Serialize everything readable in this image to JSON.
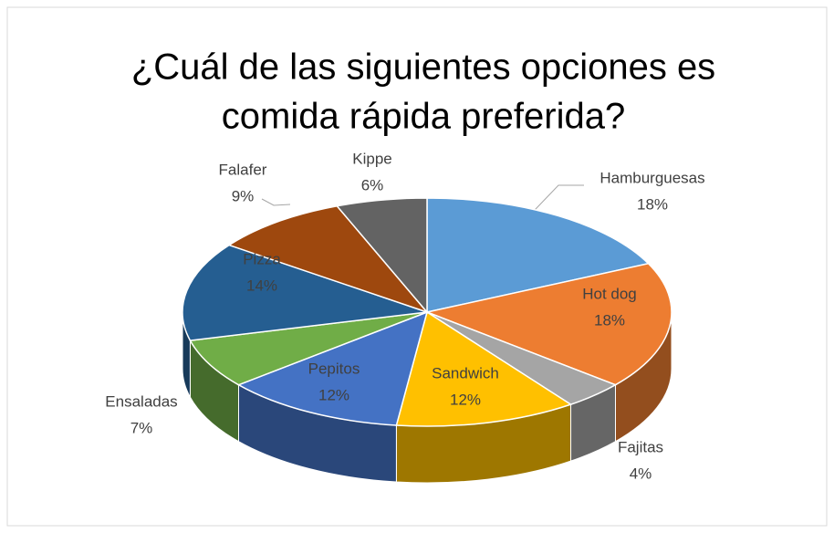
{
  "chart_data": {
    "type": "pie",
    "title": [
      "¿Cuál de las siguientes opciones es",
      "comida rápida preferida?"
    ],
    "categories": [
      "Hamburguesas",
      "Hot dog",
      "Fajitas",
      "Sandwich",
      "Pepitos",
      "Ensaladas",
      "Pizza",
      "Falafer",
      "Kippe"
    ],
    "values": [
      18,
      18,
      4,
      12,
      12,
      7,
      14,
      9,
      6
    ],
    "value_labels": [
      "18%",
      "18%",
      "4%",
      "12%",
      "12%",
      "7%",
      "14%",
      "9%",
      "6%"
    ],
    "colors": [
      "#5b9bd5",
      "#ed7d31",
      "#a5a5a5",
      "#ffc000",
      "#4472c4",
      "#70ad47",
      "#255e91",
      "#9e480e",
      "#636363"
    ]
  }
}
